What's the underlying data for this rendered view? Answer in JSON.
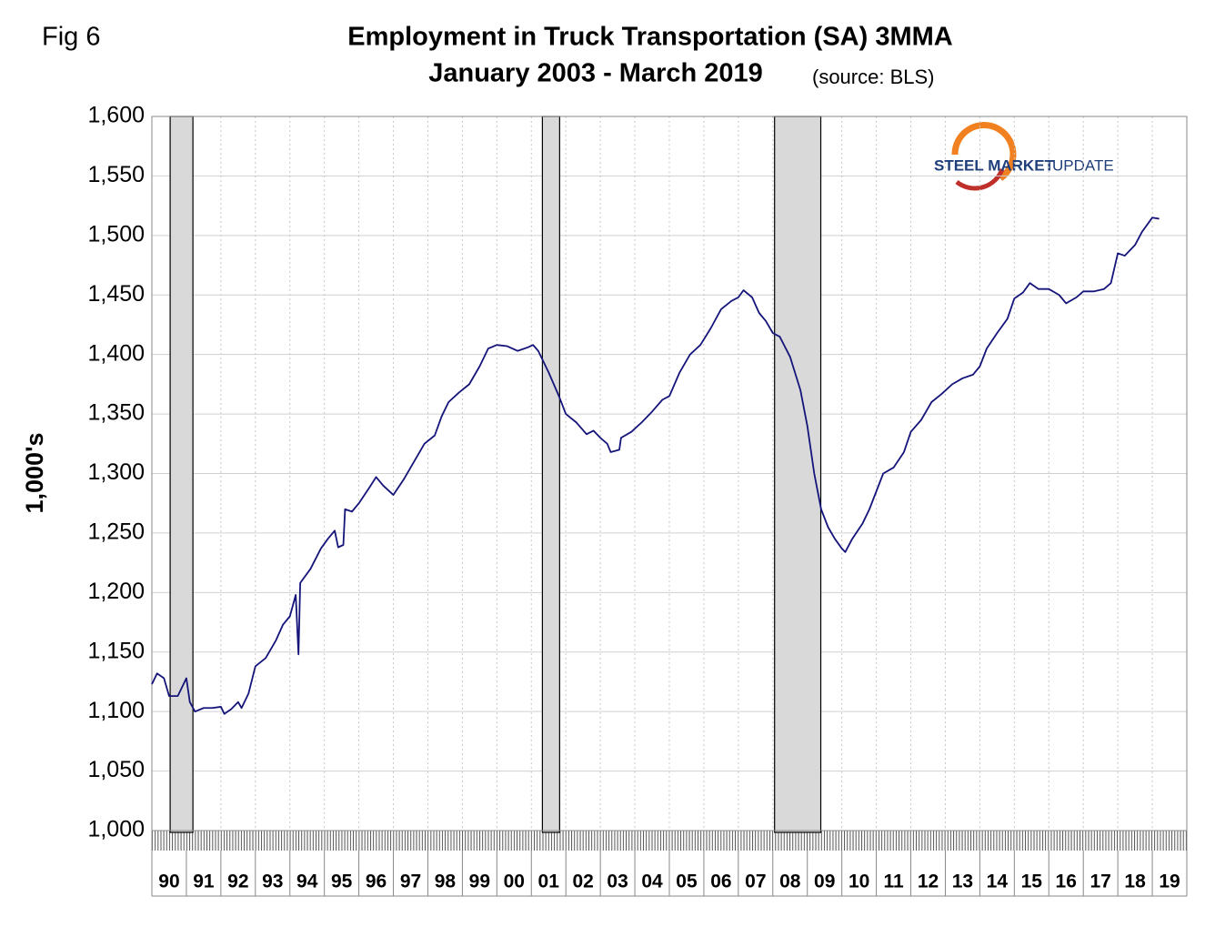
{
  "chart_data": {
    "type": "line",
    "fig_label": "Fig 6",
    "title": "Employment in Truck Transportation (SA) 3MMA",
    "subtitle": "January 2003 - March 2019",
    "source": "(source: BLS)",
    "y_label": "1,000's",
    "logo": [
      "STEEL MARKET",
      "UPDATE"
    ],
    "color": "#14147a",
    "recession_color": "#d9d9d9",
    "grid": true,
    "xlim": [
      1990,
      2020
    ],
    "ylim": [
      1000,
      1600
    ],
    "yticks": [
      {
        "value": 1000,
        "label": "1,000"
      },
      {
        "value": 1050,
        "label": "1,050"
      },
      {
        "value": 1100,
        "label": "1,100"
      },
      {
        "value": 1150,
        "label": "1,150"
      },
      {
        "value": 1200,
        "label": "1,200"
      },
      {
        "value": 1250,
        "label": "1,250"
      },
      {
        "value": 1300,
        "label": "1,300"
      },
      {
        "value": 1350,
        "label": "1,350"
      },
      {
        "value": 1400,
        "label": "1,400"
      },
      {
        "value": 1450,
        "label": "1,450"
      },
      {
        "value": 1500,
        "label": "1,500"
      },
      {
        "value": 1550,
        "label": "1,550"
      },
      {
        "value": 1600,
        "label": "1,600"
      }
    ],
    "xticks": [
      {
        "value": 1990,
        "label": "90"
      },
      {
        "value": 1991,
        "label": "91"
      },
      {
        "value": 1992,
        "label": "92"
      },
      {
        "value": 1993,
        "label": "93"
      },
      {
        "value": 1994,
        "label": "94"
      },
      {
        "value": 1995,
        "label": "95"
      },
      {
        "value": 1996,
        "label": "96"
      },
      {
        "value": 1997,
        "label": "97"
      },
      {
        "value": 1998,
        "label": "98"
      },
      {
        "value": 1999,
        "label": "99"
      },
      {
        "value": 2000,
        "label": "00"
      },
      {
        "value": 2001,
        "label": "01"
      },
      {
        "value": 2002,
        "label": "02"
      },
      {
        "value": 2003,
        "label": "03"
      },
      {
        "value": 2004,
        "label": "04"
      },
      {
        "value": 2005,
        "label": "05"
      },
      {
        "value": 2006,
        "label": "06"
      },
      {
        "value": 2007,
        "label": "07"
      },
      {
        "value": 2008,
        "label": "08"
      },
      {
        "value": 2009,
        "label": "09"
      },
      {
        "value": 2010,
        "label": "10"
      },
      {
        "value": 2011,
        "label": "11"
      },
      {
        "value": 2012,
        "label": "12"
      },
      {
        "value": 2013,
        "label": "13"
      },
      {
        "value": 2014,
        "label": "14"
      },
      {
        "value": 2015,
        "label": "15"
      },
      {
        "value": 2016,
        "label": "16"
      },
      {
        "value": 2017,
        "label": "17"
      },
      {
        "value": 2018,
        "label": "18"
      },
      {
        "value": 2019,
        "label": "19"
      }
    ],
    "recessions": [
      [
        1990.53,
        1991.19
      ],
      [
        2001.32,
        2001.82
      ],
      [
        2008.05,
        2009.39
      ]
    ],
    "x": [
      1990.0,
      1990.15,
      1990.35,
      1990.5,
      1990.75,
      1991.0,
      1991.1,
      1991.25,
      1991.5,
      1991.75,
      1992.0,
      1992.1,
      1992.3,
      1992.5,
      1992.6,
      1992.8,
      1993.0,
      1993.3,
      1993.6,
      1993.8,
      1994.0,
      1994.17,
      1994.25,
      1994.3,
      1994.6,
      1994.9,
      1995.1,
      1995.3,
      1995.4,
      1995.55,
      1995.6,
      1995.8,
      1996.0,
      1996.3,
      1996.5,
      1996.7,
      1997.0,
      1997.3,
      1997.6,
      1997.9,
      1998.2,
      1998.4,
      1998.6,
      1998.9,
      1999.2,
      1999.5,
      1999.75,
      2000.0,
      2000.3,
      2000.6,
      2000.9,
      2001.05,
      2001.2,
      2001.5,
      2001.8,
      2002.0,
      2002.3,
      2002.6,
      2002.8,
      2003.0,
      2003.2,
      2003.3,
      2003.55,
      2003.6,
      2003.9,
      2004.2,
      2004.5,
      2004.8,
      2005.0,
      2005.3,
      2005.6,
      2005.9,
      2006.2,
      2006.5,
      2006.8,
      2007.0,
      2007.15,
      2007.4,
      2007.6,
      2007.8,
      2008.0,
      2008.2,
      2008.5,
      2008.8,
      2009.0,
      2009.2,
      2009.4,
      2009.6,
      2009.8,
      2010.0,
      2010.1,
      2010.3,
      2010.6,
      2010.8,
      2011.0,
      2011.2,
      2011.5,
      2011.8,
      2012.0,
      2012.3,
      2012.6,
      2012.9,
      2013.2,
      2013.5,
      2013.8,
      2014.0,
      2014.2,
      2014.5,
      2014.8,
      2015.0,
      2015.25,
      2015.45,
      2015.7,
      2016.0,
      2016.3,
      2016.5,
      2016.8,
      2017.0,
      2017.3,
      2017.6,
      2017.8,
      2018.0,
      2018.2,
      2018.5,
      2018.7,
      2019.0,
      2019.2
    ],
    "values": [
      1123,
      1132,
      1128,
      1113,
      1113,
      1128,
      1108,
      1100,
      1103,
      1103,
      1104,
      1098,
      1102,
      1108,
      1103,
      1115,
      1138,
      1145,
      1160,
      1173,
      1180,
      1198,
      1148,
      1208,
      1220,
      1237,
      1245,
      1252,
      1238,
      1240,
      1270,
      1268,
      1275,
      1288,
      1297,
      1290,
      1282,
      1295,
      1310,
      1325,
      1332,
      1348,
      1360,
      1368,
      1375,
      1390,
      1405,
      1408,
      1407,
      1403,
      1406,
      1408,
      1403,
      1385,
      1365,
      1350,
      1343,
      1333,
      1336,
      1330,
      1325,
      1318,
      1320,
      1330,
      1335,
      1343,
      1352,
      1362,
      1365,
      1385,
      1400,
      1408,
      1422,
      1438,
      1445,
      1448,
      1454,
      1448,
      1435,
      1428,
      1418,
      1415,
      1398,
      1370,
      1340,
      1300,
      1270,
      1255,
      1245,
      1237,
      1234,
      1245,
      1258,
      1270,
      1285,
      1300,
      1305,
      1318,
      1335,
      1345,
      1360,
      1367,
      1375,
      1380,
      1383,
      1390,
      1405,
      1418,
      1430,
      1447,
      1452,
      1460,
      1455,
      1455,
      1450,
      1443,
      1448,
      1453,
      1453,
      1455,
      1460,
      1485,
      1483,
      1492,
      1503,
      1515,
      1514
    ]
  }
}
